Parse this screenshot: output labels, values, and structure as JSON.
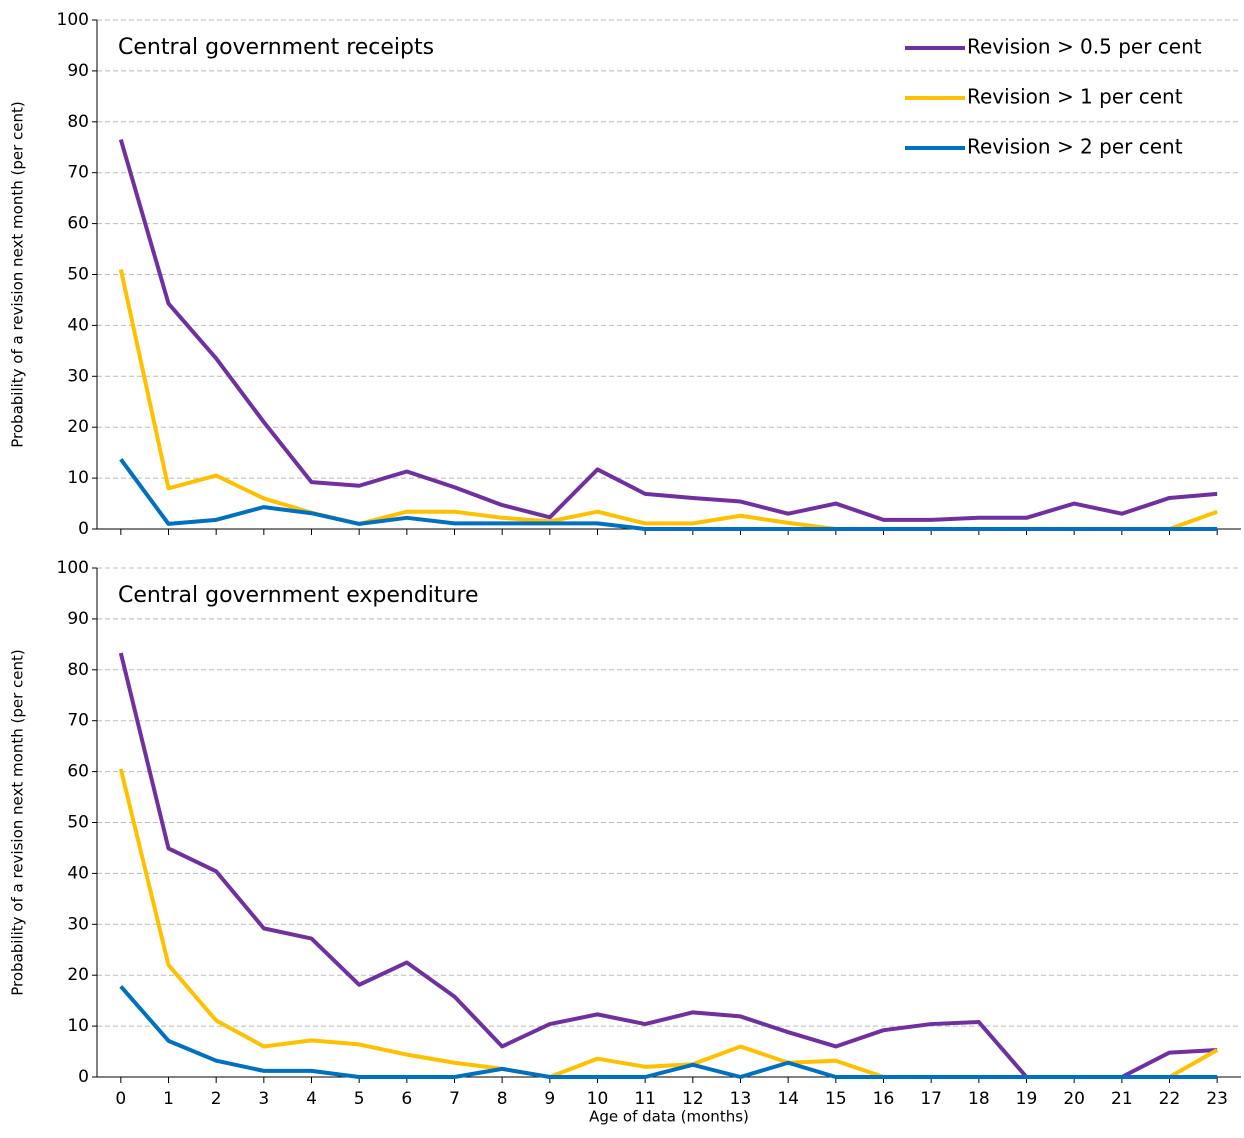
{
  "chart_data": [
    {
      "type": "line",
      "title": "Central government receipts",
      "ylabel": "Probability of a revision next month (per cent)",
      "x": [
        0,
        1,
        2,
        3,
        4,
        5,
        6,
        7,
        8,
        9,
        10,
        11,
        12,
        13,
        14,
        15,
        16,
        17,
        18,
        19,
        20,
        21,
        22,
        23
      ],
      "xlim": [
        -0.5,
        23.5
      ],
      "ylim": [
        0,
        100
      ],
      "yticks": [
        0,
        10,
        20,
        30,
        40,
        50,
        60,
        70,
        80,
        90,
        100
      ],
      "grid": true,
      "legend": "upper right",
      "series": [
        {
          "name": "Revision > 0.5 per cent",
          "color": "#7030a0",
          "values": [
            76.5,
            44.3,
            33.5,
            21,
            9.2,
            8.5,
            11.3,
            8.2,
            4.7,
            2.3,
            11.7,
            6.9,
            6.1,
            5.4,
            3,
            5,
            1.8,
            1.8,
            2.2,
            2.2,
            5,
            3,
            6.1,
            6.9
          ]
        },
        {
          "name": "Revision > 1 per cent",
          "color": "#ffc000",
          "values": [
            51,
            8,
            10.5,
            6,
            3.2,
            1,
            3.4,
            3.4,
            2.2,
            1.5,
            3.4,
            1.1,
            1.1,
            2.6,
            1.2,
            0,
            0,
            0,
            0,
            0,
            0,
            0,
            0,
            3.4
          ]
        },
        {
          "name": "Revision > 2 per cent",
          "color": "#0070c0",
          "values": [
            13.7,
            1,
            1.8,
            4.3,
            3.1,
            1,
            2.2,
            1.1,
            1.1,
            1.1,
            1.1,
            0,
            0,
            0,
            0,
            0,
            0,
            0,
            0,
            0,
            0,
            0,
            0,
            0
          ]
        }
      ]
    },
    {
      "type": "line",
      "title": "Central government expenditure",
      "ylabel": "Probability of a revision next month (per cent)",
      "xlabel": "Age of data (months)",
      "x": [
        0,
        1,
        2,
        3,
        4,
        5,
        6,
        7,
        8,
        9,
        10,
        11,
        12,
        13,
        14,
        15,
        16,
        17,
        18,
        19,
        20,
        21,
        22,
        23
      ],
      "xlim": [
        -0.5,
        23.5
      ],
      "ylim": [
        0,
        100
      ],
      "yticks": [
        0,
        10,
        20,
        30,
        40,
        50,
        60,
        70,
        80,
        90,
        100
      ],
      "grid": true,
      "series": [
        {
          "color": "#7030a0",
          "values": [
            83.3,
            44.9,
            40.4,
            29.2,
            27.2,
            18.1,
            22.5,
            15.8,
            6,
            10.4,
            12.3,
            10.4,
            12.7,
            11.9,
            8.8,
            6,
            9.2,
            10.4,
            10.8,
            0,
            0,
            0,
            4.8,
            5.3
          ]
        },
        {
          "color": "#ffc000",
          "values": [
            60.5,
            22,
            11.1,
            6,
            7.2,
            6.4,
            4.4,
            2.8,
            1.6,
            0,
            3.6,
            2,
            2.5,
            6,
            2.8,
            3.2,
            0,
            0,
            0,
            0,
            0,
            0,
            0,
            5.3
          ]
        },
        {
          "color": "#0070c0",
          "values": [
            17.8,
            7.1,
            3.2,
            1.2,
            1.2,
            0,
            0,
            0,
            1.6,
            0,
            0,
            0,
            2.4,
            0,
            2.8,
            0,
            0,
            0,
            0,
            0,
            0,
            0,
            0,
            0
          ]
        }
      ]
    }
  ]
}
